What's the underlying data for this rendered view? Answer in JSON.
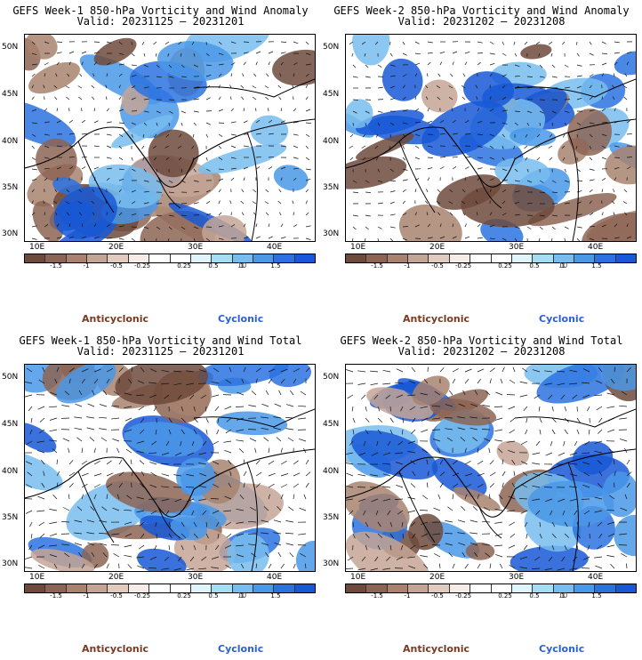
{
  "panels": [
    {
      "title": "GEFS Week-1 850-hPa Vorticity and Wind Anomaly",
      "valid": "Valid: 20231125 – 20231201"
    },
    {
      "title": "GEFS Week-2 850-hPa Vorticity and Wind Anomaly",
      "valid": "Valid: 20231202 – 20231208"
    },
    {
      "title": "GEFS Week-1 850-hPa Vorticity and Wind Total",
      "valid": "Valid: 20231125 – 20231201"
    },
    {
      "title": "GEFS Week-2 850-hPa Vorticity and Wind Total",
      "valid": "Valid: 20231202 – 20231208"
    }
  ],
  "lat_labels": [
    "50N",
    "45N",
    "40N",
    "35N",
    "30N"
  ],
  "lon_labels": [
    "10E",
    "20E",
    "30E",
    "40E"
  ],
  "colorbar": {
    "tick_labels": [
      "-1.5",
      "-1",
      "-0.5",
      "-0.25",
      "0.25",
      "0.5",
      "1",
      "1.5"
    ],
    "unit": "10",
    "colors": [
      "#6e4a3c",
      "#8c6454",
      "#a8826f",
      "#c4a595",
      "#e0cbbe",
      "#f6ebe6",
      "#ffffff",
      "#ffffff",
      "#dff4fb",
      "#a4def5",
      "#78bdef",
      "#4a98e8",
      "#2b72e0",
      "#1858d6"
    ]
  },
  "legend": {
    "anticyclonic": "Anticyclonic",
    "cyclonic": "Cyclonic",
    "anticyclonic_color": "#7a3a22",
    "cyclonic_color": "#2b5fd8"
  }
}
